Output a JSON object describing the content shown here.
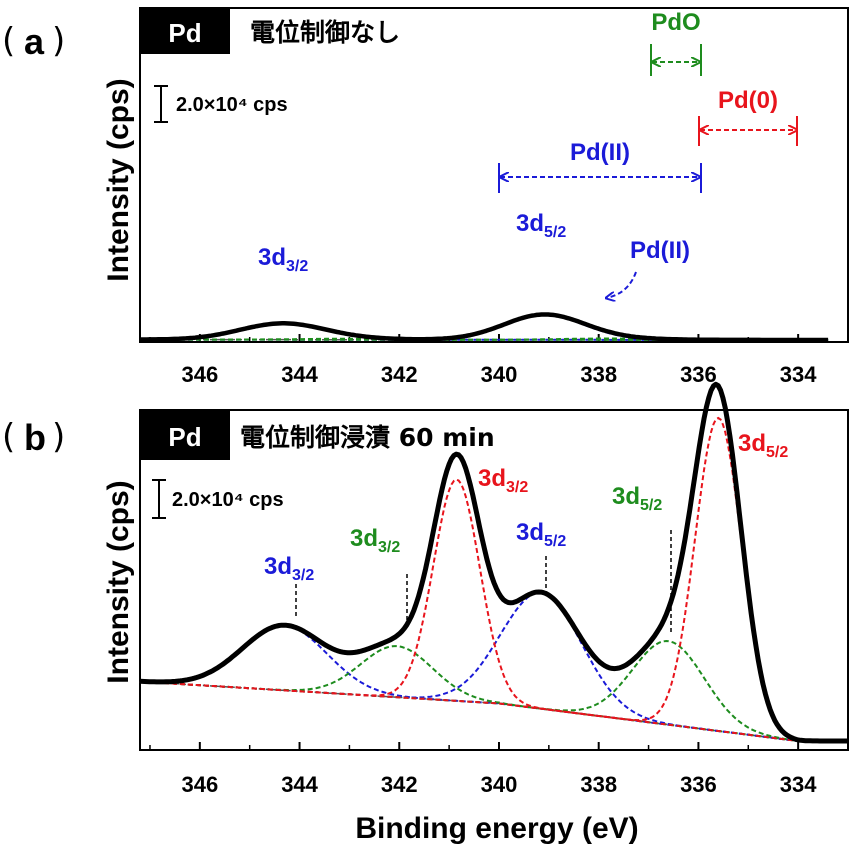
{
  "figure": {
    "x_axis_label": "Binding energy (eV)",
    "y_axis_label": "Intensity (cps)",
    "x_tick_labels": [
      "346",
      "344",
      "342",
      "340",
      "338",
      "336",
      "334"
    ],
    "scale_bar_text": "2.0×10⁴ cps"
  },
  "panel_a": {
    "label": "a",
    "sample": "Pd",
    "condition": "電位制御なし"
  },
  "panel_b": {
    "label": "b",
    "sample": "Pd",
    "condition": "電位制御浸漬 60 min"
  },
  "annotations": {
    "pdo": "PdO",
    "pd0": "Pd(0)",
    "pd2_range": "Pd(II)",
    "pd2_arrow": "Pd(II)",
    "d32": "3d3/2",
    "d52": "3d5/2"
  },
  "colors": {
    "pd0": "#e8141c",
    "pd2": "#1b1bd8",
    "pdo": "#1e8c1e",
    "background_line": "#555555",
    "envelope": "#000000"
  },
  "chart_data": [
    {
      "panel": "a",
      "type": "line",
      "x_axis_reversed": true,
      "xlim": [
        347.2,
        333.0
      ],
      "xlabel": "",
      "ylabel": "Intensity (cps)",
      "background": [
        {
          "be": 347.2,
          "y": 0.005
        },
        {
          "be": 333.4,
          "y": 0.0
        }
      ],
      "peaks": [
        {
          "component": "Pd(II)",
          "orbital": "3d3/2",
          "center": 344.35,
          "height": 0.177,
          "fwhm": 2.0
        },
        {
          "component": "Pd(II)",
          "orbital": "3d5/2",
          "center": 339.1,
          "height": 0.276,
          "fwhm": 1.9
        },
        {
          "component": "PdO",
          "orbital": "3d3/2",
          "center": 343.1,
          "height": 0.01,
          "fwhm": 2.2
        },
        {
          "component": "PdO",
          "orbital": "3d5/2",
          "center": 337.8,
          "height": 0.015,
          "fwhm": 2.2
        }
      ]
    },
    {
      "panel": "b",
      "type": "line",
      "x_axis_reversed": true,
      "xlim": [
        347.2,
        333.0
      ],
      "xlabel": "Binding energy (eV)",
      "ylabel": "Intensity (cps)",
      "background": [
        {
          "be": 347.2,
          "y": 0.19
        },
        {
          "be": 340.0,
          "y": 0.12
        },
        {
          "be": 336.0,
          "y": 0.04
        },
        {
          "be": 334.0,
          "y": 0.0
        },
        {
          "be": 333.0,
          "y": 0.0
        }
      ],
      "peaks": [
        {
          "component": "Pd(II)",
          "orbital": "3d3/2",
          "center": 344.3,
          "height": 0.207,
          "fwhm": 2.0
        },
        {
          "component": "Pd(II)",
          "orbital": "3d5/2",
          "center": 339.15,
          "height": 0.371,
          "fwhm": 1.9
        },
        {
          "component": "PdO",
          "orbital": "3d3/2",
          "center": 342.05,
          "height": 0.163,
          "fwhm": 1.7
        },
        {
          "component": "PdO",
          "orbital": "3d5/2",
          "center": 336.6,
          "height": 0.267,
          "fwhm": 1.7
        },
        {
          "component": "Pd(0)",
          "orbital": "3d3/2",
          "center": 340.85,
          "height": 0.707,
          "fwhm": 1.1
        },
        {
          "component": "Pd(0)",
          "orbital": "3d5/2",
          "center": 335.6,
          "height": 1.0,
          "fwhm": 1.1
        }
      ]
    }
  ]
}
